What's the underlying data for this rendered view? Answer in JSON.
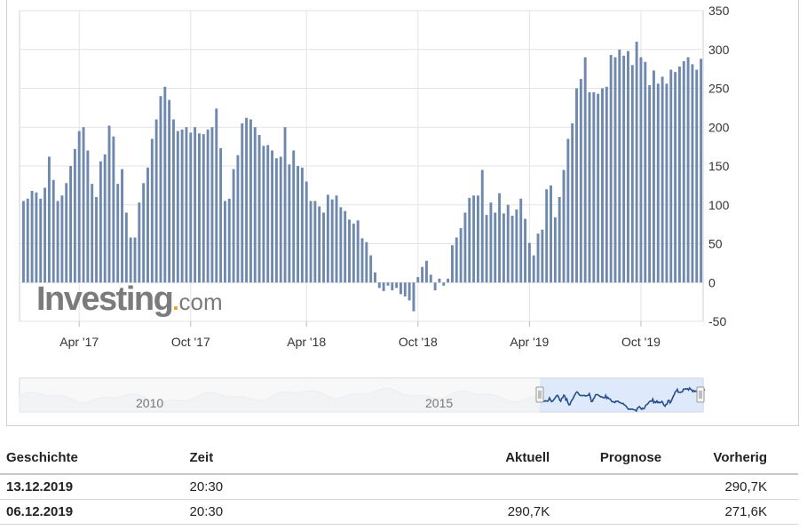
{
  "chart_data": {
    "type": "bar",
    "y_ticks": [
      "350",
      "300",
      "250",
      "200",
      "150",
      "100",
      "50",
      "0",
      "-50"
    ],
    "ylim": [
      -50,
      350
    ],
    "x_tick_labels": [
      "Apr '17",
      "Oct '17",
      "Apr '18",
      "Oct '18",
      "Apr '19",
      "Oct '19"
    ],
    "grid": true,
    "series": [
      {
        "values": [
          105,
          108,
          118,
          116,
          108,
          122,
          162,
          132,
          105,
          112,
          128,
          150,
          172,
          195,
          200,
          170,
          127,
          110,
          156,
          165,
          202,
          188,
          127,
          146,
          90,
          58,
          58,
          103,
          128,
          148,
          185,
          210,
          240,
          252,
          235,
          210,
          195,
          197,
          200,
          193,
          200,
          192,
          191,
          197,
          200,
          224,
          173,
          105,
          108,
          146,
          164,
          205,
          212,
          210,
          200,
          190,
          176,
          177,
          170,
          160,
          162,
          200,
          152,
          170,
          150,
          148,
          130,
          105,
          105,
          98,
          90,
          113,
          107,
          112,
          97,
          92,
          81,
          76,
          80,
          57,
          52,
          35,
          13,
          -7,
          -11,
          -4,
          -10,
          -7,
          -15,
          -18,
          -23,
          -37,
          7,
          20,
          28,
          10,
          -10,
          5,
          -4,
          5,
          48,
          58,
          70,
          90,
          109,
          112,
          112,
          145,
          87,
          103,
          90,
          115,
          89,
          100,
          86,
          94,
          108,
          82,
          51,
          35,
          63,
          68,
          120,
          125,
          84,
          110,
          145,
          185,
          205,
          250,
          262,
          290,
          245,
          245,
          243,
          250,
          252,
          293,
          290,
          300,
          292,
          298,
          280,
          310,
          290,
          284,
          254,
          273,
          256,
          265,
          256,
          274,
          271,
          278,
          285,
          290,
          281,
          274,
          288
        ]
      }
    ],
    "navigator": {
      "labels": [
        "2010",
        "2015"
      ]
    }
  },
  "watermark": {
    "brand": "Investing",
    "dot": ".",
    "domain": "com"
  },
  "colors": {
    "bar": "#6f88ad",
    "grid": "#e3e3e3",
    "navigator_line": "#274e8a",
    "navigator_fill": "#d0e1f9",
    "navigator_context": "#dbe3ee"
  },
  "history_table": {
    "headers": {
      "history": "Geschichte",
      "time": "Zeit",
      "actual": "Aktuell",
      "forecast": "Prognose",
      "previous": "Vorherig"
    },
    "rows": [
      {
        "date": "13.12.2019",
        "time": "20:30",
        "actual": "",
        "forecast": "",
        "previous": "290,7K"
      },
      {
        "date": "06.12.2019",
        "time": "20:30",
        "actual": "290,7K",
        "forecast": "",
        "previous": "271,6K"
      }
    ]
  }
}
